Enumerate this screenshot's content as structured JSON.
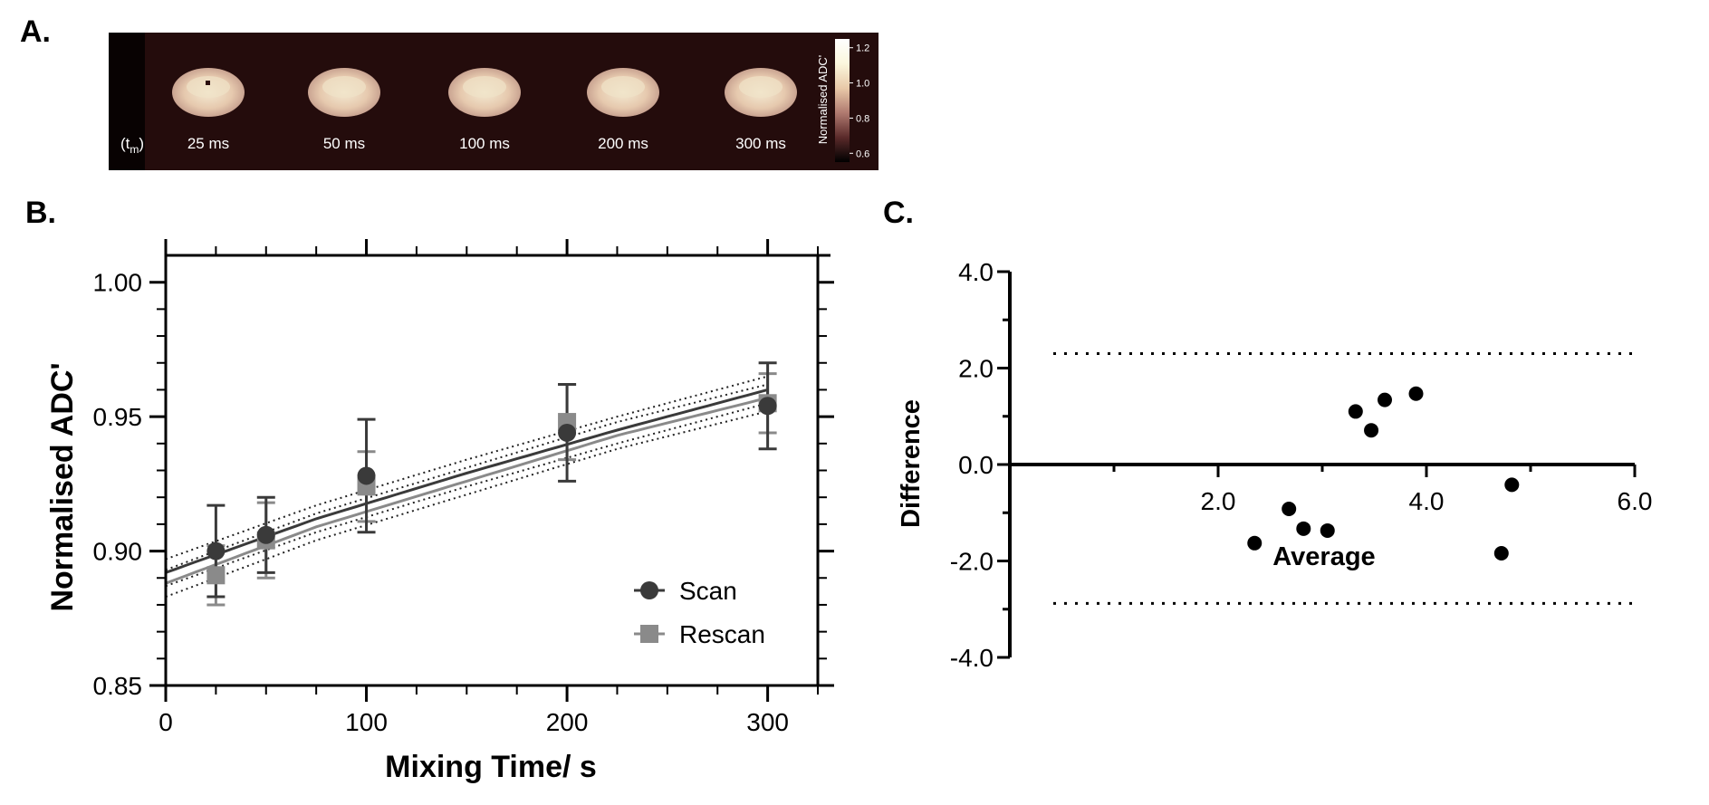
{
  "panels": {
    "a": {
      "letter": "A."
    },
    "b": {
      "letter": "B."
    },
    "c": {
      "letter": "C."
    }
  },
  "panel_a": {
    "tm_label": "(t",
    "tm_sub": "m",
    "tm_close": ")",
    "slices": [
      "25 ms",
      "50 ms",
      "100 ms",
      "200 ms",
      "300 ms"
    ],
    "colorbar": {
      "label": "Normalised ADC'",
      "ticks": [
        "1.2",
        "1.0",
        "0.8",
        "0.6"
      ],
      "tick_values": [
        1.2,
        1.0,
        0.8,
        0.6
      ],
      "range": [
        0.55,
        1.25
      ],
      "colors": [
        "#000000",
        "#5a2a2a",
        "#b07a70",
        "#e8c9a8",
        "#fbf7dd",
        "#ffffff"
      ]
    },
    "background": "#240c0c"
  },
  "chart_data": [
    {
      "type": "scatter",
      "xlabel": "Mixing Time/ s",
      "ylabel": "Normalised ADC'",
      "xlim": [
        0,
        325
      ],
      "ylim": [
        0.85,
        1.01
      ],
      "xticks": [
        0,
        100,
        200,
        300
      ],
      "xtick_labels": [
        "0",
        "100",
        "200",
        "300"
      ],
      "yticks": [
        0.85,
        0.9,
        0.95,
        1.0
      ],
      "ytick_labels": [
        "0.85",
        "0.90",
        "0.95",
        "1.00"
      ],
      "legend_position": "bottom-right",
      "series": [
        {
          "name": "Scan",
          "marker": "circle",
          "color": "#3a3a3a",
          "x": [
            25,
            50,
            100,
            200,
            300
          ],
          "y": [
            0.9,
            0.906,
            0.928,
            0.944,
            0.954
          ],
          "err": [
            0.017,
            0.014,
            0.021,
            0.018,
            0.016
          ],
          "fit_y": [
            0.892,
            0.912,
            0.929,
            0.945,
            0.96
          ]
        },
        {
          "name": "Rescan",
          "marker": "square",
          "color": "#8a8a8a",
          "x": [
            25,
            50,
            100,
            200,
            300
          ],
          "y": [
            0.891,
            0.904,
            0.924,
            0.948,
            0.955
          ],
          "err": [
            0.011,
            0.014,
            0.013,
            0.014,
            0.011
          ],
          "fit_y": [
            0.888,
            0.909,
            0.926,
            0.943,
            0.957
          ]
        }
      ],
      "fit_x": [
        0,
        75,
        150,
        225,
        300
      ],
      "confidence_band_offset": 0.005
    },
    {
      "type": "scatter",
      "xlabel": "Average",
      "ylabel": "Difference",
      "xlim": [
        0,
        6.0
      ],
      "ylim": [
        -4.0,
        4.0
      ],
      "xticks": [
        2.0,
        4.0,
        6.0
      ],
      "xtick_labels": [
        "2.0",
        "4.0",
        "6.0"
      ],
      "yticks": [
        4.0,
        2.0,
        0.0,
        -2.0,
        -4.0
      ],
      "ytick_labels": [
        "4.0",
        "2.0",
        "0.0",
        "-2.0",
        "-4.0"
      ],
      "x": [
        2.35,
        2.68,
        2.82,
        3.05,
        3.32,
        3.47,
        3.6,
        3.9,
        4.72,
        4.82
      ],
      "y": [
        -1.63,
        -0.92,
        -1.33,
        -1.37,
        1.1,
        0.71,
        1.34,
        1.47,
        -1.84,
        -0.42
      ],
      "limits_of_agreement": [
        2.3,
        -2.88
      ]
    }
  ]
}
